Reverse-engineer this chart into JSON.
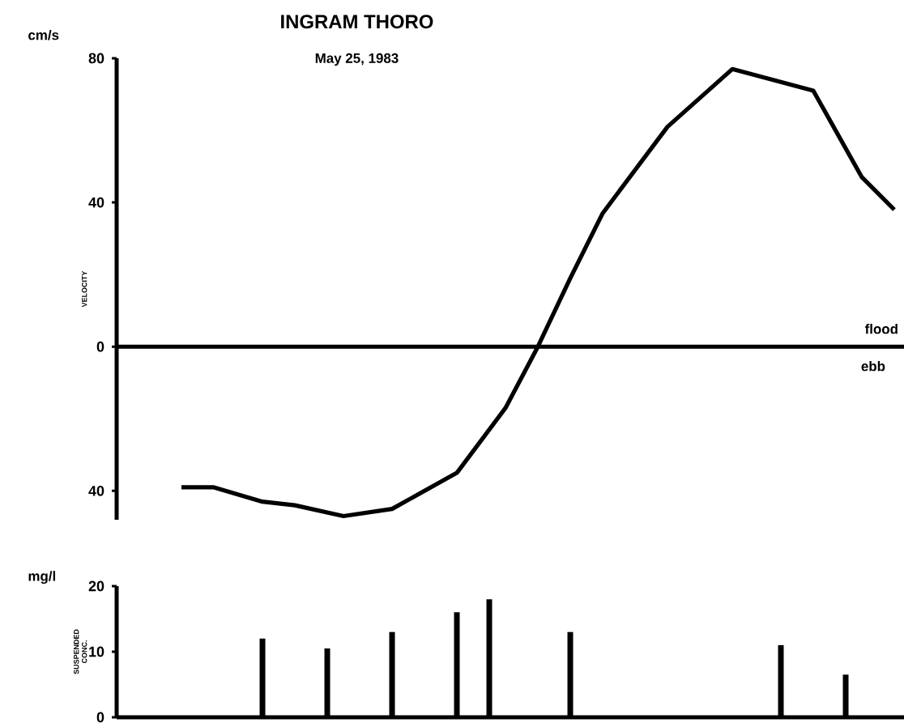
{
  "chart_data": [
    {
      "type": "line",
      "title": "INGRAM THORO",
      "subtitle": "May 25, 1983",
      "ylabel": "VELOCITY",
      "annotations": [
        "cm/s",
        "flood",
        "ebb"
      ],
      "categories": [
        null,
        null,
        null,
        null,
        null,
        null,
        null,
        null,
        null,
        null,
        null,
        null,
        null,
        null,
        null,
        null,
        null,
        null,
        null,
        null,
        null,
        null,
        null,
        null,
        null,
        null,
        null,
        null,
        null,
        null,
        null,
        null,
        null,
        null,
        null,
        null,
        null,
        null,
        null,
        null,
        null,
        null,
        null,
        null,
        null,
        null,
        null,
        null,
        null
      ],
      "values": [
        null,
        null,
        null,
        null,
        -39,
        null,
        -39,
        null,
        null,
        -43,
        null,
        -44,
        null,
        null,
        -47,
        null,
        null,
        -45,
        null,
        null,
        null,
        -35,
        null,
        null,
        -17,
        null,
        0,
        null,
        19,
        null,
        37,
        null,
        null,
        null,
        61,
        null,
        null,
        null,
        77,
        null,
        null,
        null,
        null,
        71,
        null,
        null,
        47,
        null,
        38
      ],
      "color": "#000000",
      "ylim": [
        -48,
        80
      ],
      "yticks": [
        {
          "value": -40,
          "label": "40"
        },
        0,
        40,
        80
      ],
      "tick_labels": "y",
      "marker": "none"
    },
    {
      "type": "bar",
      "ylabel": "SUSPENDED CONC.",
      "annotations": [
        "mg/l"
      ],
      "categories": [
        null,
        null,
        null,
        null,
        null,
        null,
        null,
        null,
        null,
        null,
        null,
        null,
        null,
        null,
        null,
        null,
        null,
        null,
        null,
        null,
        null,
        null,
        null,
        null,
        null,
        null,
        null,
        null,
        null,
        null,
        null,
        null,
        null,
        null,
        null,
        null,
        null,
        null,
        null,
        null,
        null,
        null,
        null,
        null,
        null,
        null,
        null,
        null,
        null
      ],
      "values": [
        null,
        null,
        null,
        null,
        null,
        null,
        null,
        null,
        null,
        12,
        null,
        null,
        null,
        10.5,
        null,
        null,
        null,
        13,
        null,
        null,
        null,
        16,
        null,
        18,
        null,
        null,
        null,
        null,
        13,
        null,
        null,
        null,
        null,
        null,
        null,
        null,
        null,
        null,
        null,
        null,
        null,
        11,
        null,
        null,
        null,
        6.5,
        null,
        null,
        null
      ],
      "color": "#000000",
      "ylim": [
        0,
        20
      ],
      "yticks": [
        0,
        10,
        20
      ],
      "tick_labels": "y"
    }
  ]
}
